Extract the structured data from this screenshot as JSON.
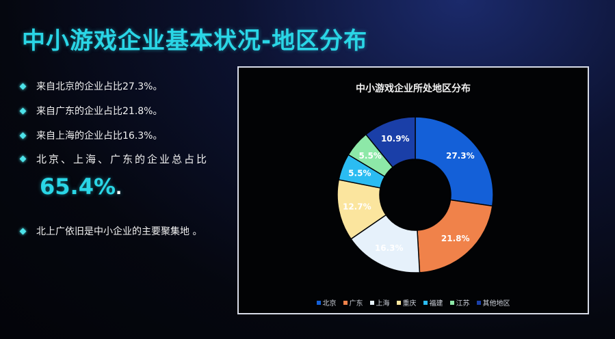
{
  "slide": {
    "title": "中小游戏企业基本状况-地区分布",
    "bullets": [
      "来自北京的企业占比27.3%。",
      "来自广东的企业占比21.8%。",
      "来自上海的企业占比16.3%。",
      "北京、上海、广东的企业总占比"
    ],
    "highlight_value": "65.4%",
    "highlight_suffix": ".",
    "final_bullet": "北上广依旧是中小企业的主要聚集地 。"
  },
  "chart_data": {
    "type": "pie",
    "donut": true,
    "title": "中小游戏企业所处地区分布",
    "categories": [
      "北京",
      "广东",
      "上海",
      "重庆",
      "福建",
      "江苏",
      "其他地区"
    ],
    "values": [
      27.3,
      21.8,
      16.3,
      12.7,
      5.5,
      5.5,
      10.9
    ],
    "labels": [
      "27.3%",
      "21.8%",
      "16.3%",
      "12.7%",
      "5.5%",
      "5.5%",
      "10.9%"
    ],
    "colors": [
      "#1460d8",
      "#f0824a",
      "#e6f1fb",
      "#fbe59e",
      "#2bbcf2",
      "#8de8a8",
      "#1a3fa8"
    ],
    "label_colors": [
      "#ffffff",
      "#ffffff",
      "#ffffff",
      "#ffffff",
      "#ffffff",
      "#ffffff",
      "#ffffff"
    ],
    "legend_position": "bottom"
  }
}
